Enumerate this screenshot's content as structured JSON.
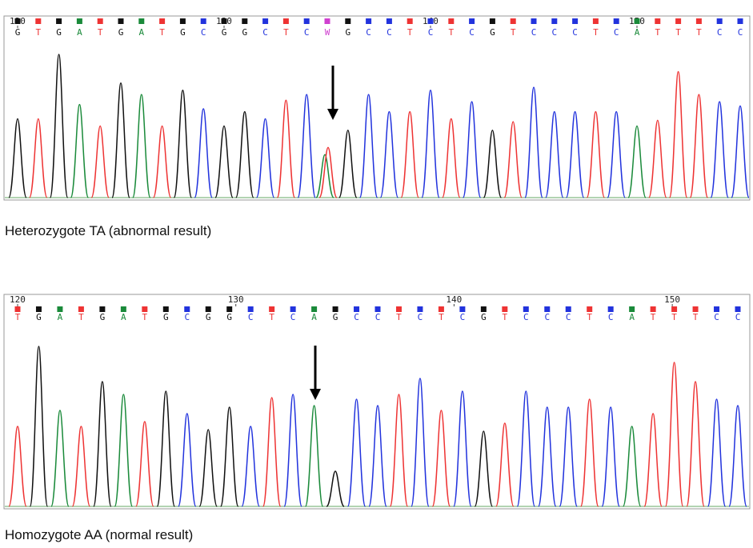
{
  "panels": [
    {
      "positions": [
        "120",
        "130",
        "140",
        "150"
      ],
      "bases": [
        "G",
        "T",
        "G",
        "A",
        "T",
        "G",
        "A",
        "T",
        "G",
        "C",
        "G",
        "G",
        "C",
        "T",
        "C",
        "W",
        "G",
        "C",
        "C",
        "T",
        "C",
        "T",
        "C",
        "G",
        "T",
        "C",
        "C",
        "C",
        "T",
        "C",
        "A",
        "T",
        "T",
        "T",
        "C",
        "C"
      ],
      "caption": "Heterozygote TA (abnormal result)"
    },
    {
      "positions": [
        "120",
        "130",
        "140",
        "150"
      ],
      "bases": [
        "T",
        "G",
        "A",
        "T",
        "G",
        "A",
        "T",
        "G",
        "C",
        "G",
        "G",
        "C",
        "T",
        "C",
        "A",
        "G",
        "C",
        "C",
        "T",
        "C",
        "T",
        "C",
        "G",
        "T",
        "C",
        "C",
        "C",
        "T",
        "C",
        "A",
        "T",
        "T",
        "T",
        "C",
        "C"
      ],
      "caption": "Homozygote AA (normal result)"
    }
  ]
}
